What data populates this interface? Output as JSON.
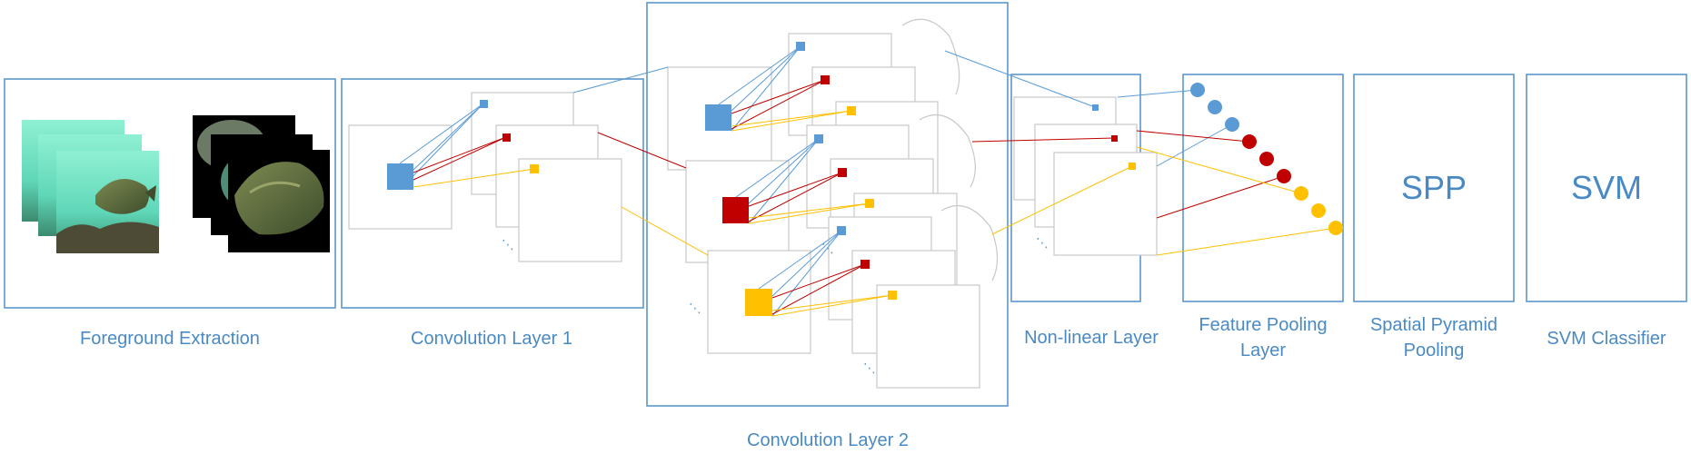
{
  "stages": {
    "foreground": {
      "label": "Foreground Extraction"
    },
    "conv1": {
      "label": "Convolution Layer 1"
    },
    "conv2": {
      "label": "Convolution Layer 2"
    },
    "nonlinear": {
      "label": "Non-linear Layer"
    },
    "pooling": {
      "label_line1": "Feature Pooling",
      "label_line2": "Layer"
    },
    "spp": {
      "label_line1": "Spatial Pyramid",
      "label_line2": "Pooling",
      "box_text": "SPP"
    },
    "svm": {
      "label": "SVM Classifier",
      "box_text": "SVM"
    }
  },
  "colors": {
    "blue": "#5b9bd5",
    "red": "#c00000",
    "yellow": "#ffc000",
    "box_border": "#5b97cc",
    "label_text": "#4a8ac4"
  },
  "continuation_marker": "⋱"
}
